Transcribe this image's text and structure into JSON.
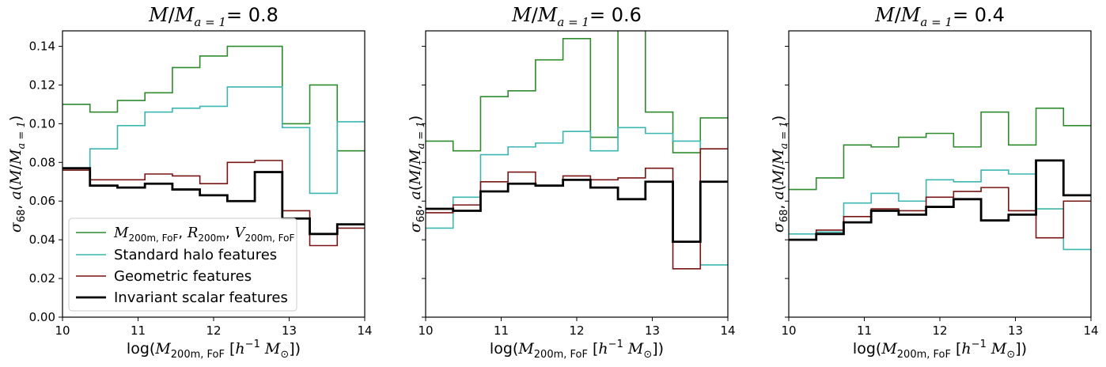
{
  "colors": {
    "green": "#2e8b2e",
    "cyan": "#3ab7b0",
    "darkred": "#7a1414",
    "black": "#000000"
  },
  "chart_data": [
    {
      "type": "line",
      "step": true,
      "title": "M/M_{a=1} = 0.8",
      "title_main": "M/M",
      "title_sub": "a = 1",
      "title_value": " = 0.8",
      "x_edges": [
        10,
        10.3636,
        10.7273,
        11.0909,
        11.4545,
        11.8182,
        12.1818,
        12.5455,
        12.9091,
        13.2727,
        13.6364,
        14
      ],
      "xlim": [
        10,
        14
      ],
      "ylim": [
        0,
        0.148
      ],
      "xticks": [
        "10",
        "11",
        "12",
        "13",
        "14"
      ],
      "yticks": [
        "0.00",
        "0.02",
        "0.04",
        "0.06",
        "0.08",
        "0.10",
        "0.12",
        "0.14"
      ],
      "xlabel": "log(M_{200m, FoF} [h^{-1} M_⊙])",
      "ylabel": "σ_68, a(M/M_{a=1})",
      "legend_position": "lower-left",
      "series": [
        {
          "name": "M_{200m,FoF}, R_{200m}, V_{200m,FoF}",
          "color": "green",
          "width": 1.6,
          "values": [
            0.11,
            0.106,
            0.112,
            0.116,
            0.129,
            0.135,
            0.14,
            0.14,
            0.1,
            0.12,
            0.086
          ]
        },
        {
          "name": "Standard halo features",
          "color": "cyan",
          "width": 1.6,
          "values": [
            0.076,
            0.087,
            0.099,
            0.106,
            0.108,
            0.109,
            0.119,
            0.119,
            0.098,
            0.064,
            0.101
          ]
        },
        {
          "name": "Geometric features",
          "color": "darkred",
          "width": 1.6,
          "values": [
            0.076,
            0.071,
            0.071,
            0.074,
            0.073,
            0.069,
            0.08,
            0.081,
            0.055,
            0.037,
            0.046
          ]
        },
        {
          "name": "Invariant scalar features",
          "color": "black",
          "width": 2.8,
          "values": [
            0.077,
            0.068,
            0.067,
            0.069,
            0.066,
            0.063,
            0.06,
            0.075,
            0.051,
            0.043,
            0.048
          ]
        }
      ]
    },
    {
      "type": "line",
      "step": true,
      "title": "M/M_{a=1} = 0.6",
      "title_main": "M/M",
      "title_sub": "a = 1",
      "title_value": " = 0.6",
      "x_edges": [
        10,
        10.3636,
        10.7273,
        11.0909,
        11.4545,
        11.8182,
        12.1818,
        12.5455,
        12.9091,
        13.2727,
        13.6364,
        14
      ],
      "xlim": [
        10,
        14
      ],
      "ylim": [
        0,
        0.148
      ],
      "xticks": [
        "10",
        "11",
        "12",
        "13",
        "14"
      ],
      "xlabel": "log(M_{200m, FoF} [h^{-1} M_⊙])",
      "ylabel": "σ_68, a(M/M_{a=1})",
      "series": [
        {
          "name": "M_{200m,FoF}, R_{200m}, V_{200m,FoF}",
          "color": "green",
          "width": 1.6,
          "values": [
            0.091,
            0.086,
            0.114,
            0.117,
            0.133,
            0.144,
            0.093,
            0.16,
            0.106,
            0.085,
            0.103
          ]
        },
        {
          "name": "Standard halo features",
          "color": "cyan",
          "width": 1.6,
          "values": [
            0.046,
            0.062,
            0.084,
            0.088,
            0.09,
            0.096,
            0.086,
            0.098,
            0.095,
            0.091,
            0.027
          ]
        },
        {
          "name": "Geometric features",
          "color": "darkred",
          "width": 1.6,
          "values": [
            0.054,
            0.058,
            0.07,
            0.075,
            0.068,
            0.073,
            0.071,
            0.072,
            0.077,
            0.025,
            0.087
          ]
        },
        {
          "name": "Invariant scalar features",
          "color": "black",
          "width": 2.8,
          "values": [
            0.056,
            0.055,
            0.065,
            0.069,
            0.068,
            0.071,
            0.067,
            0.061,
            0.07,
            0.039,
            0.07
          ]
        }
      ]
    },
    {
      "type": "line",
      "step": true,
      "title": "M/M_{a=1} = 0.4",
      "title_main": "M/M",
      "title_sub": "a = 1",
      "title_value": " = 0.4",
      "x_edges": [
        10,
        10.3636,
        10.7273,
        11.0909,
        11.4545,
        11.8182,
        12.1818,
        12.5455,
        12.9091,
        13.2727,
        13.6364,
        14
      ],
      "xlim": [
        10,
        14
      ],
      "ylim": [
        0,
        0.148
      ],
      "xticks": [
        "10",
        "11",
        "12",
        "13",
        "14"
      ],
      "xlabel": "log(M_{200m, FoF} [h^{-1} M_⊙])",
      "ylabel": "σ_68, a(M/M_{a=1})",
      "series": [
        {
          "name": "M_{200m,FoF}, R_{200m}, V_{200m,FoF}",
          "color": "green",
          "width": 1.6,
          "values": [
            0.066,
            0.072,
            0.089,
            0.088,
            0.093,
            0.095,
            0.088,
            0.106,
            0.089,
            0.108,
            0.099
          ]
        },
        {
          "name": "Standard halo features",
          "color": "cyan",
          "width": 1.6,
          "values": [
            0.043,
            0.044,
            0.059,
            0.064,
            0.06,
            0.071,
            0.07,
            0.076,
            0.074,
            0.056,
            0.035
          ]
        },
        {
          "name": "Geometric features",
          "color": "darkred",
          "width": 1.6,
          "values": [
            0.04,
            0.045,
            0.052,
            0.056,
            0.055,
            0.062,
            0.065,
            0.067,
            0.055,
            0.041,
            0.06
          ]
        },
        {
          "name": "Invariant scalar features",
          "color": "black",
          "width": 2.8,
          "values": [
            0.04,
            0.043,
            0.049,
            0.055,
            0.053,
            0.057,
            0.061,
            0.05,
            0.053,
            0.081,
            0.063
          ]
        }
      ]
    }
  ],
  "legend": {
    "items": [
      {
        "label_parts": [
          "M",
          "200m, FoF",
          ", ",
          "R",
          "200m",
          ", ",
          "V",
          "200m, FoF"
        ],
        "color": "green",
        "width": 1.6
      },
      {
        "label": "Standard halo features",
        "color": "cyan",
        "width": 1.6
      },
      {
        "label": "Geometric features",
        "color": "darkred",
        "width": 1.6
      },
      {
        "label": "Invariant scalar features",
        "color": "black",
        "width": 2.8
      }
    ]
  }
}
